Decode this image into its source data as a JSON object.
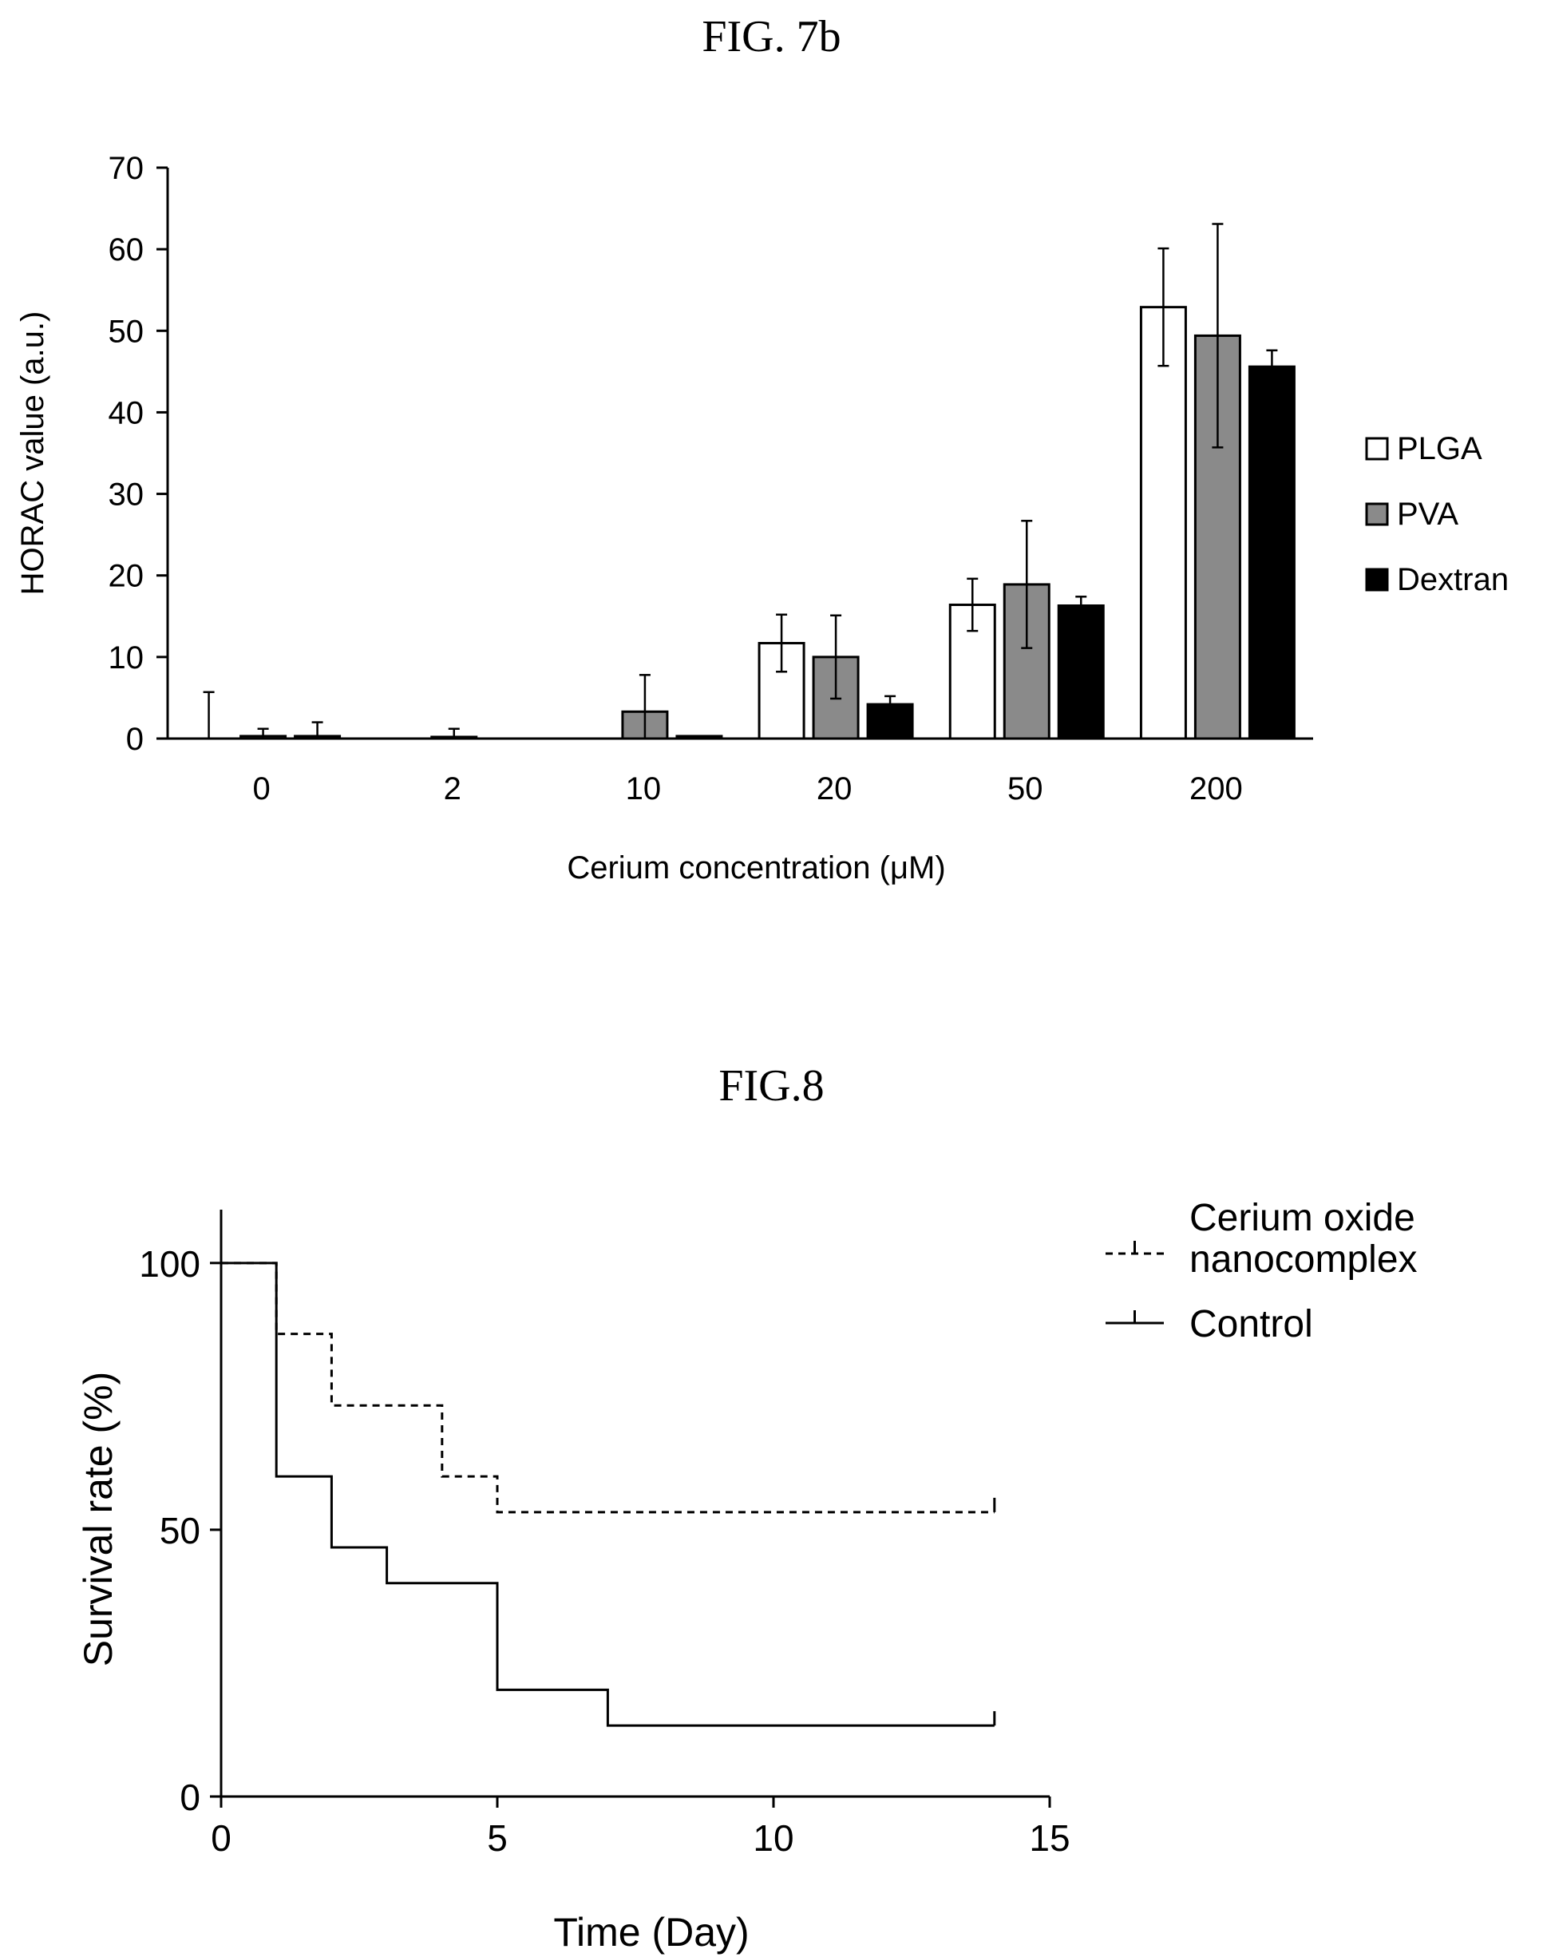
{
  "figures": {
    "fig7b_title": "FIG. 7b",
    "fig8_title": "FIG.8"
  },
  "chart_data": [
    {
      "type": "bar",
      "title": "FIG. 7b",
      "xlabel": "Cerium concentration (μM)",
      "ylabel": "HORAC value (a.u.)",
      "ylim": [
        0,
        70
      ],
      "yticks": [
        0,
        10,
        20,
        30,
        40,
        50,
        60,
        70
      ],
      "categories": [
        "0",
        "2",
        "10",
        "20",
        "50",
        "200"
      ],
      "legend_position": "right",
      "grid": false,
      "series": [
        {
          "name": "PLGA",
          "color": "#ffffff",
          "values": [
            0,
            0,
            0,
            11.7,
            16.4,
            52.9
          ],
          "errors": [
            5.7,
            0,
            0,
            3.5,
            3.2,
            7.2
          ]
        },
        {
          "name": "PVA",
          "color": "#8a8a8a",
          "values": [
            0.3,
            0.2,
            3.3,
            10.0,
            18.9,
            49.4
          ],
          "errors": [
            0.9,
            1.0,
            4.5,
            5.1,
            7.8,
            13.7
          ]
        },
        {
          "name": "Dextran",
          "color": "#000000",
          "values": [
            0.3,
            0,
            0.3,
            4.2,
            16.3,
            45.6
          ],
          "errors": [
            1.7,
            0,
            0,
            1.0,
            1.1,
            2.0
          ]
        }
      ]
    },
    {
      "type": "line",
      "title": "FIG.8",
      "xlabel": "Time (Day)",
      "ylabel": "Survival rate  (%)",
      "xlim": [
        0,
        15
      ],
      "ylim": [
        0,
        110
      ],
      "xticks": [
        0,
        5,
        10,
        15
      ],
      "yticks": [
        0,
        50,
        100
      ],
      "legend_position": "top-right",
      "grid": false,
      "series": [
        {
          "name": "Cerium oxide nanocomplex",
          "style": "dashed",
          "points": [
            [
              0,
              100
            ],
            [
              1,
              86.7
            ],
            [
              2,
              73.3
            ],
            [
              4,
              60
            ],
            [
              5,
              53.3
            ],
            [
              14,
              53.3
            ]
          ]
        },
        {
          "name": "Control",
          "style": "solid",
          "points": [
            [
              0,
              100
            ],
            [
              1,
              60
            ],
            [
              2,
              46.7
            ],
            [
              3,
              40
            ],
            [
              5,
              20
            ],
            [
              7,
              13.3
            ],
            [
              14,
              13.3
            ]
          ]
        }
      ]
    }
  ]
}
